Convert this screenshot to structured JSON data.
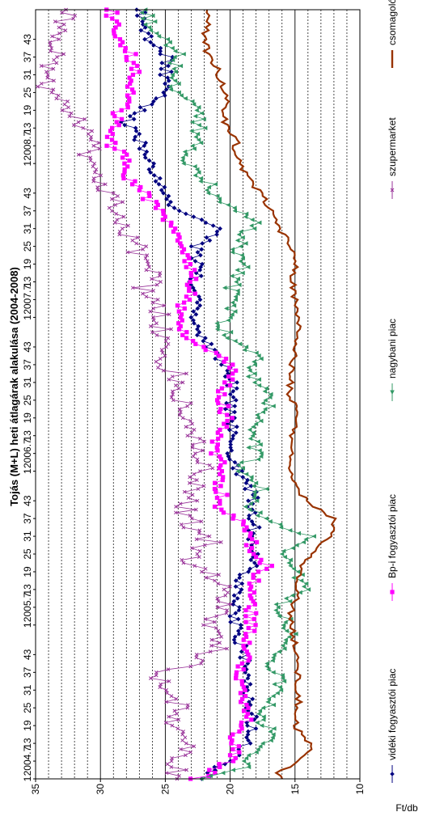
{
  "chart_data": {
    "type": "line",
    "title": "Tojás (M+L) heti átlagárak alakulása (2004-2008)",
    "ylabel": "Ft/db",
    "xlabel": "",
    "ylim": [
      10,
      35
    ],
    "yticks": [
      10,
      15,
      20,
      25,
      30,
      35
    ],
    "grid": true,
    "legend_position": "bottom",
    "x_tick_labels": [
      "1",
      "2004.7",
      "13",
      "19",
      "25",
      "31",
      "37",
      "43",
      "1",
      "2005.7",
      "13",
      "19",
      "25",
      "31",
      "37",
      "43",
      "1",
      "2006.7",
      "13",
      "19",
      "25",
      "31",
      "37",
      "43",
      "1",
      "2007.7",
      "13",
      "19",
      "25",
      "31",
      "37",
      "43",
      "1",
      "2008.7",
      "13",
      "19",
      "25",
      "31",
      "37",
      "43"
    ],
    "x_label_weeks": [
      0,
      6,
      12,
      18,
      24,
      30,
      36,
      42,
      52,
      58,
      64,
      70,
      76,
      82,
      88,
      94,
      104,
      110,
      116,
      122,
      128,
      134,
      140,
      146,
      156,
      162,
      168,
      174,
      180,
      186,
      192,
      198,
      208,
      214,
      220,
      226,
      232,
      238,
      244,
      250
    ],
    "x_range_weeks": [
      0,
      260
    ],
    "series": [
      {
        "name": "vidéki fogyasztói piac",
        "color": "#000080",
        "marker": "diamond",
        "anchors": [
          [
            0,
            22
          ],
          [
            3,
            21.3
          ],
          [
            8,
            19.5
          ],
          [
            14,
            18.5
          ],
          [
            20,
            18.3
          ],
          [
            26,
            18.5
          ],
          [
            32,
            18.8
          ],
          [
            38,
            18.7
          ],
          [
            46,
            19.2
          ],
          [
            52,
            19.5
          ],
          [
            58,
            19.7
          ],
          [
            66,
            19.5
          ],
          [
            72,
            18.3
          ],
          [
            80,
            18.2
          ],
          [
            86,
            18.1
          ],
          [
            92,
            18.6
          ],
          [
            96,
            18.2
          ],
          [
            100,
            19
          ],
          [
            104,
            19.2
          ],
          [
            110,
            20.2
          ],
          [
            116,
            19.6
          ],
          [
            120,
            19.8
          ],
          [
            126,
            20.0
          ],
          [
            132,
            19.8
          ],
          [
            138,
            20.0
          ],
          [
            142,
            20.8
          ],
          [
            146,
            21.6
          ],
          [
            150,
            22.3
          ],
          [
            156,
            22.8
          ],
          [
            162,
            22.2
          ],
          [
            168,
            22.7
          ],
          [
            174,
            22.6
          ],
          [
            180,
            22.6
          ],
          [
            186,
            20.4
          ],
          [
            190,
            22.8
          ],
          [
            194,
            24.5
          ],
          [
            200,
            25.3
          ],
          [
            206,
            26.0
          ],
          [
            210,
            26.4
          ],
          [
            216,
            27.0
          ],
          [
            222,
            28.0
          ],
          [
            228,
            26.3
          ],
          [
            232,
            25.2
          ],
          [
            238,
            25.0
          ],
          [
            244,
            24.8
          ],
          [
            250,
            26.2
          ],
          [
            256,
            26.8
          ],
          [
            260,
            26.8
          ]
        ]
      },
      {
        "name": "Bp-i fogyasztói piac",
        "color": "#ff00ff",
        "marker": "square",
        "anchors": [
          [
            0,
            22.8
          ],
          [
            2,
            21.5
          ],
          [
            6,
            20.2
          ],
          [
            10,
            19.6
          ],
          [
            14,
            19.6
          ],
          [
            20,
            18.5
          ],
          [
            26,
            19.0
          ],
          [
            30,
            18.9
          ],
          [
            36,
            19.3
          ],
          [
            44,
            18.5
          ],
          [
            52,
            18.5
          ],
          [
            58,
            18.4
          ],
          [
            62,
            18.4
          ],
          [
            66,
            18.5
          ],
          [
            72,
            17.0
          ],
          [
            76,
            18.5
          ],
          [
            82,
            18.1
          ],
          [
            88,
            19.6
          ],
          [
            92,
            21.0
          ],
          [
            96,
            20.6
          ],
          [
            100,
            20.9
          ],
          [
            106,
            20.6
          ],
          [
            112,
            21.3
          ],
          [
            120,
            20.2
          ],
          [
            126,
            20.5
          ],
          [
            132,
            20.5
          ],
          [
            136,
            19.7
          ],
          [
            140,
            20.2
          ],
          [
            144,
            21.3
          ],
          [
            148,
            23.2
          ],
          [
            152,
            23.7
          ],
          [
            158,
            24.0
          ],
          [
            164,
            22.7
          ],
          [
            170,
            23.0
          ],
          [
            176,
            23.6
          ],
          [
            182,
            23.6
          ],
          [
            188,
            24.5
          ],
          [
            194,
            26.0
          ],
          [
            198,
            26.5
          ],
          [
            204,
            28.0
          ],
          [
            210,
            28.2
          ],
          [
            216,
            29.5
          ],
          [
            222,
            28.8
          ],
          [
            226,
            28.5
          ],
          [
            232,
            27.5
          ],
          [
            238,
            27.3
          ],
          [
            244,
            27.6
          ],
          [
            250,
            28.5
          ],
          [
            256,
            29.0
          ],
          [
            260,
            29.2
          ]
        ]
      },
      {
        "name": "nagybani piac",
        "color": "#339966",
        "marker": "triangle",
        "anchors": [
          [
            0,
            21.9
          ],
          [
            4,
            19.0
          ],
          [
            10,
            17.6
          ],
          [
            16,
            17.0
          ],
          [
            22,
            17.8
          ],
          [
            28,
            16.2
          ],
          [
            34,
            16.0
          ],
          [
            40,
            17.0
          ],
          [
            46,
            15.2
          ],
          [
            52,
            15.4
          ],
          [
            58,
            16.5
          ],
          [
            64,
            14.5
          ],
          [
            70,
            15.0
          ],
          [
            76,
            16.2
          ],
          [
            82,
            14.0
          ],
          [
            86,
            16.5
          ],
          [
            92,
            18.5
          ],
          [
            98,
            17.6
          ],
          [
            104,
            19.4
          ],
          [
            110,
            17.8
          ],
          [
            116,
            18.6
          ],
          [
            122,
            17.5
          ],
          [
            128,
            16.8
          ],
          [
            134,
            18.0
          ],
          [
            138,
            18.5
          ],
          [
            142,
            17.9
          ],
          [
            146,
            18.5
          ],
          [
            150,
            20.3
          ],
          [
            154,
            20.8
          ],
          [
            160,
            19.6
          ],
          [
            166,
            20.0
          ],
          [
            172,
            19.0
          ],
          [
            178,
            19.5
          ],
          [
            184,
            19.0
          ],
          [
            188,
            18.0
          ],
          [
            192,
            19.6
          ],
          [
            196,
            21.0
          ],
          [
            202,
            21.8
          ],
          [
            210,
            23.6
          ],
          [
            214,
            22.8
          ],
          [
            220,
            22.4
          ],
          [
            226,
            22.5
          ],
          [
            232,
            24.0
          ],
          [
            238,
            24.5
          ],
          [
            246,
            23.9
          ],
          [
            252,
            26.0
          ],
          [
            258,
            26.5
          ],
          [
            260,
            26.3
          ]
        ]
      },
      {
        "name": "szupermarket",
        "color": "#993399",
        "marker": "x",
        "anchors": [
          [
            0,
            23.5
          ],
          [
            2,
            24.0
          ],
          [
            6,
            24.2
          ],
          [
            10,
            23.4
          ],
          [
            14,
            24.0
          ],
          [
            20,
            24.1
          ],
          [
            26,
            24.1
          ],
          [
            32,
            25.5
          ],
          [
            36,
            25.0
          ],
          [
            40,
            22.5
          ],
          [
            44,
            21.0
          ],
          [
            48,
            20.6
          ],
          [
            52,
            21.5
          ],
          [
            58,
            20.2
          ],
          [
            64,
            20.5
          ],
          [
            70,
            21.8
          ],
          [
            74,
            23.2
          ],
          [
            80,
            21.5
          ],
          [
            86,
            23.0
          ],
          [
            92,
            23.5
          ],
          [
            96,
            23.3
          ],
          [
            100,
            22.5
          ],
          [
            106,
            22.0
          ],
          [
            112,
            22.5
          ],
          [
            118,
            22.5
          ],
          [
            124,
            24.0
          ],
          [
            130,
            23.6
          ],
          [
            136,
            24.0
          ],
          [
            142,
            25.6
          ],
          [
            148,
            25.5
          ],
          [
            154,
            25.3
          ],
          [
            160,
            25.7
          ],
          [
            166,
            26.8
          ],
          [
            170,
            25.5
          ],
          [
            176,
            26.8
          ],
          [
            182,
            27.5
          ],
          [
            188,
            28.0
          ],
          [
            194,
            28.6
          ],
          [
            198,
            29.0
          ],
          [
            202,
            30.5
          ],
          [
            206,
            31.0
          ],
          [
            210,
            30.8
          ],
          [
            214,
            31.0
          ],
          [
            218,
            30.7
          ],
          [
            222,
            31.8
          ],
          [
            226,
            32.5
          ],
          [
            230,
            33.5
          ],
          [
            234,
            34.2
          ],
          [
            238,
            34.6
          ],
          [
            242,
            33.5
          ],
          [
            246,
            33.2
          ],
          [
            250,
            33.0
          ],
          [
            256,
            33.0
          ],
          [
            260,
            32.5
          ]
        ]
      },
      {
        "name": "csomagolóhely",
        "color": "#993300",
        "marker": "none",
        "anchors": [
          [
            0,
            15.8
          ],
          [
            2,
            16.5
          ],
          [
            4,
            15.4
          ],
          [
            8,
            14.2
          ],
          [
            10,
            13.6
          ],
          [
            14,
            14.3
          ],
          [
            18,
            15.0
          ],
          [
            22,
            15.0
          ],
          [
            26,
            14.7
          ],
          [
            30,
            15.0
          ],
          [
            34,
            14.6
          ],
          [
            38,
            14.9
          ],
          [
            44,
            15.0
          ],
          [
            50,
            15.2
          ],
          [
            56,
            15.3
          ],
          [
            60,
            15.0
          ],
          [
            64,
            14.7
          ],
          [
            70,
            14.7
          ],
          [
            74,
            14.2
          ],
          [
            78,
            13.2
          ],
          [
            82,
            12.2
          ],
          [
            88,
            12.0
          ],
          [
            92,
            13.4
          ],
          [
            96,
            14.5
          ],
          [
            100,
            15.0
          ],
          [
            104,
            15.3
          ],
          [
            108,
            15.4
          ],
          [
            112,
            15.3
          ],
          [
            116,
            15.3
          ],
          [
            120,
            15.0
          ],
          [
            126,
            15.0
          ],
          [
            130,
            15.5
          ],
          [
            134,
            15.3
          ],
          [
            138,
            15.3
          ],
          [
            142,
            15.1
          ],
          [
            146,
            15.0
          ],
          [
            150,
            14.8
          ],
          [
            156,
            14.7
          ],
          [
            162,
            15.0
          ],
          [
            168,
            15.2
          ],
          [
            174,
            15.0
          ],
          [
            180,
            15.3
          ],
          [
            186,
            16.2
          ],
          [
            192,
            16.8
          ],
          [
            198,
            17.7
          ],
          [
            204,
            18.8
          ],
          [
            208,
            19.2
          ],
          [
            212,
            19.8
          ],
          [
            216,
            19.4
          ],
          [
            220,
            20.3
          ],
          [
            224,
            20.5
          ],
          [
            228,
            20.3
          ],
          [
            234,
            20.6
          ],
          [
            240,
            21.0
          ],
          [
            246,
            21.8
          ],
          [
            250,
            22.0
          ],
          [
            254,
            21.8
          ],
          [
            260,
            21.8
          ]
        ]
      }
    ]
  }
}
